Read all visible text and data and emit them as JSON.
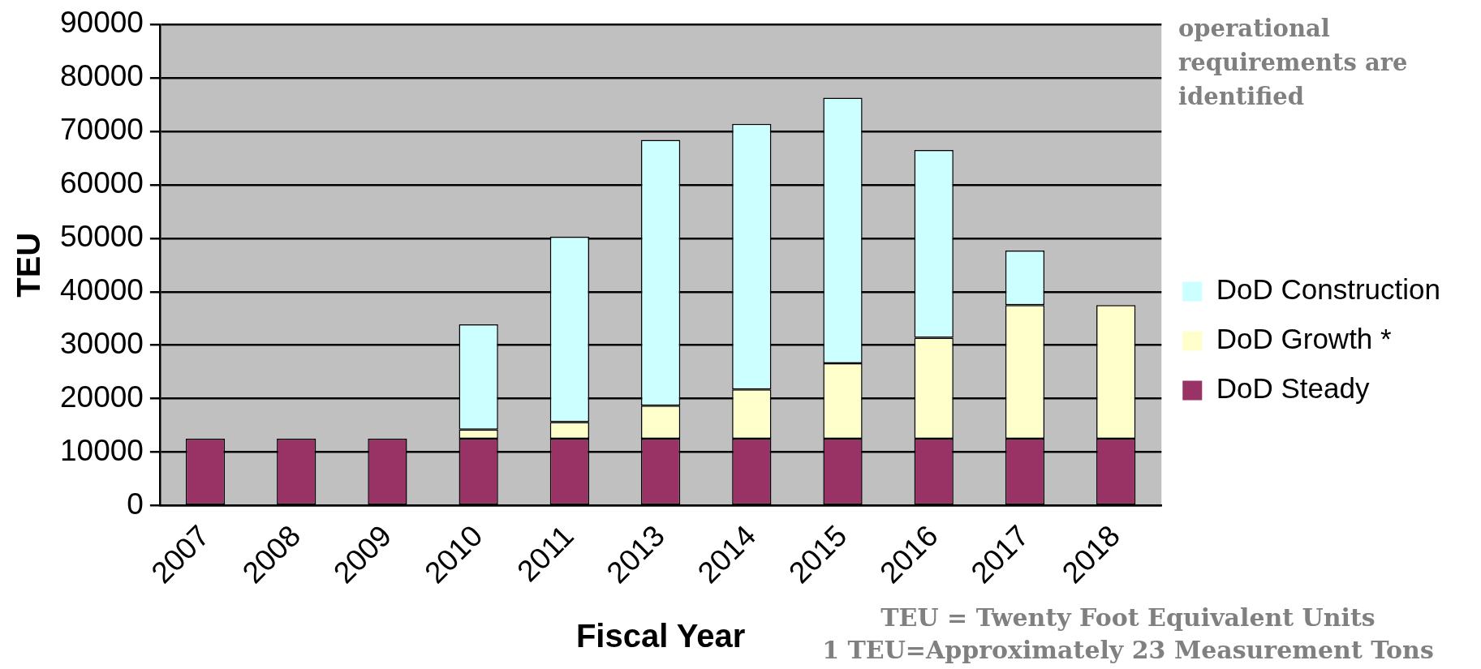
{
  "chart_data": {
    "type": "bar",
    "stacked": true,
    "xlabel": "Fiscal Year",
    "ylabel": "TEU",
    "categories": [
      "2007",
      "2008",
      "2009",
      "2010",
      "2011",
      "2013",
      "2014",
      "2015",
      "2016",
      "2017",
      "2018"
    ],
    "series": [
      {
        "name": "DoD Steady",
        "color": "#993366",
        "values": [
          12500,
          12500,
          12500,
          12500,
          12500,
          12500,
          12500,
          12500,
          12500,
          12500,
          12500
        ]
      },
      {
        "name": "DoD Growth *",
        "color": "#ffffcc",
        "values": [
          0,
          0,
          0,
          1700,
          3100,
          6200,
          9200,
          14100,
          18900,
          25000,
          25000
        ]
      },
      {
        "name": "DoD Construction",
        "color": "#ccffff",
        "values": [
          0,
          0,
          0,
          19700,
          34700,
          49700,
          49700,
          49700,
          35100,
          10200,
          0
        ]
      }
    ],
    "ylim": [
      0,
      90000
    ],
    "yticks": [
      0,
      10000,
      20000,
      30000,
      40000,
      50000,
      60000,
      70000,
      80000,
      90000
    ],
    "grid": "y",
    "legend": "right",
    "annotations": [
      "operational requirements are identified",
      "TEU = Twenty Foot Equivalent Units\n1 TEU=Approximately 23 Measurement Tons"
    ]
  }
}
